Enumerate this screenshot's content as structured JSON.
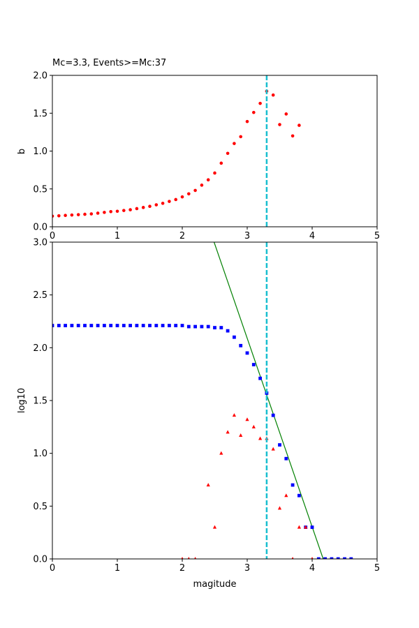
{
  "chart_data": [
    {
      "type": "scatter",
      "title": "Mc=3.3, Events>=Mc:37",
      "xlabel": "",
      "ylabel": "b",
      "xlim": [
        0,
        5
      ],
      "ylim": [
        0,
        2.0
      ],
      "xticks": [
        "0",
        "1",
        "2",
        "3",
        "4",
        "5"
      ],
      "yticks": [
        "0.0",
        "0.5",
        "1.0",
        "1.5",
        "2.0"
      ],
      "grid": false,
      "vline": {
        "x": 3.3,
        "color": "#17becf",
        "style": "dashed"
      },
      "series": [
        {
          "color": "#ff0000",
          "marker": "circle",
          "points": [
            [
              0.0,
              0.14
            ],
            [
              0.1,
              0.145
            ],
            [
              0.2,
              0.15
            ],
            [
              0.3,
              0.155
            ],
            [
              0.4,
              0.16
            ],
            [
              0.5,
              0.165
            ],
            [
              0.6,
              0.17
            ],
            [
              0.7,
              0.18
            ],
            [
              0.8,
              0.19
            ],
            [
              0.9,
              0.2
            ],
            [
              1.0,
              0.205
            ],
            [
              1.1,
              0.215
            ],
            [
              1.2,
              0.225
            ],
            [
              1.3,
              0.24
            ],
            [
              1.4,
              0.255
            ],
            [
              1.5,
              0.27
            ],
            [
              1.6,
              0.29
            ],
            [
              1.7,
              0.31
            ],
            [
              1.8,
              0.335
            ],
            [
              1.9,
              0.36
            ],
            [
              2.0,
              0.395
            ],
            [
              2.1,
              0.435
            ],
            [
              2.2,
              0.48
            ],
            [
              2.3,
              0.55
            ],
            [
              2.4,
              0.62
            ],
            [
              2.5,
              0.71
            ],
            [
              2.6,
              0.84
            ],
            [
              2.7,
              0.97
            ],
            [
              2.8,
              1.1
            ],
            [
              2.9,
              1.19
            ],
            [
              3.0,
              1.39
            ],
            [
              3.1,
              1.51
            ],
            [
              3.2,
              1.63
            ],
            [
              3.3,
              1.79
            ],
            [
              3.4,
              1.74
            ],
            [
              3.5,
              1.35
            ],
            [
              3.6,
              1.49
            ],
            [
              3.7,
              1.2
            ],
            [
              3.8,
              1.34
            ]
          ]
        }
      ]
    },
    {
      "type": "scatter",
      "title": "",
      "xlabel": "magitude",
      "ylabel": "log10",
      "xlim": [
        0,
        5
      ],
      "ylim": [
        0,
        3.0
      ],
      "xticks": [
        "0",
        "1",
        "2",
        "3",
        "4",
        "5"
      ],
      "yticks": [
        "0.0",
        "0.5",
        "1.0",
        "1.5",
        "2.0",
        "2.5",
        "3.0"
      ],
      "grid": false,
      "vline": {
        "x": 3.3,
        "color": "#17becf",
        "style": "dashed"
      },
      "fit_line": {
        "color": "#008000",
        "points": [
          [
            2.49,
            3.0
          ],
          [
            4.17,
            0.0
          ]
        ]
      },
      "series": [
        {
          "color": "#0000ff",
          "marker": "square",
          "points": [
            [
              0.0,
              2.21
            ],
            [
              0.1,
              2.21
            ],
            [
              0.2,
              2.21
            ],
            [
              0.3,
              2.21
            ],
            [
              0.4,
              2.21
            ],
            [
              0.5,
              2.21
            ],
            [
              0.6,
              2.21
            ],
            [
              0.7,
              2.21
            ],
            [
              0.8,
              2.21
            ],
            [
              0.9,
              2.21
            ],
            [
              1.0,
              2.21
            ],
            [
              1.1,
              2.21
            ],
            [
              1.2,
              2.21
            ],
            [
              1.3,
              2.21
            ],
            [
              1.4,
              2.21
            ],
            [
              1.5,
              2.21
            ],
            [
              1.6,
              2.21
            ],
            [
              1.7,
              2.21
            ],
            [
              1.8,
              2.21
            ],
            [
              1.9,
              2.21
            ],
            [
              2.0,
              2.21
            ],
            [
              2.1,
              2.2
            ],
            [
              2.2,
              2.2
            ],
            [
              2.3,
              2.2
            ],
            [
              2.4,
              2.2
            ],
            [
              2.5,
              2.19
            ],
            [
              2.6,
              2.19
            ],
            [
              2.7,
              2.16
            ],
            [
              2.8,
              2.1
            ],
            [
              2.9,
              2.02
            ],
            [
              3.0,
              1.95
            ],
            [
              3.1,
              1.84
            ],
            [
              3.2,
              1.71
            ],
            [
              3.3,
              1.57
            ],
            [
              3.4,
              1.36
            ],
            [
              3.5,
              1.08
            ],
            [
              3.6,
              0.95
            ],
            [
              3.7,
              0.7
            ],
            [
              3.8,
              0.6
            ],
            [
              3.9,
              0.3
            ],
            [
              4.0,
              0.3
            ],
            [
              4.1,
              0.0
            ],
            [
              4.2,
              0.0
            ],
            [
              4.3,
              0.0
            ],
            [
              4.4,
              0.0
            ],
            [
              4.5,
              0.0
            ],
            [
              4.6,
              0.0
            ]
          ]
        },
        {
          "color": "#ff0000",
          "marker": "triangle",
          "points": [
            [
              2.0,
              0.0
            ],
            [
              2.1,
              0.0
            ],
            [
              2.2,
              0.0
            ],
            [
              2.4,
              0.7
            ],
            [
              2.5,
              0.3
            ],
            [
              2.6,
              1.0
            ],
            [
              2.7,
              1.2
            ],
            [
              2.8,
              1.36
            ],
            [
              2.9,
              1.17
            ],
            [
              3.0,
              1.32
            ],
            [
              3.1,
              1.25
            ],
            [
              3.2,
              1.14
            ],
            [
              3.3,
              1.14
            ],
            [
              3.4,
              1.04
            ],
            [
              3.5,
              0.48
            ],
            [
              3.6,
              0.6
            ],
            [
              3.7,
              0.0
            ],
            [
              3.8,
              0.3
            ],
            [
              3.9,
              0.3
            ],
            [
              4.0,
              0.0
            ]
          ]
        }
      ]
    }
  ]
}
